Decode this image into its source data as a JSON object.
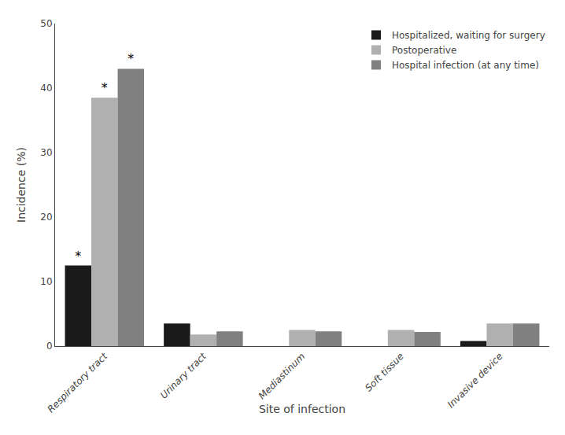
{
  "chart_data": {
    "type": "bar",
    "categories": [
      "Respiratory tract",
      "Urinary tract",
      "Mediastinum",
      "Soft tissue",
      "Invasive device"
    ],
    "series": [
      {
        "name": "Hospitalized, waiting for surgery",
        "color": "#1a1a1a",
        "values": [
          12.5,
          3.5,
          0.0,
          0.0,
          0.8
        ]
      },
      {
        "name": "Postoperative",
        "color": "#b0b0b0",
        "values": [
          38.5,
          1.8,
          2.5,
          2.5,
          3.5
        ]
      },
      {
        "name": "Hospital infection (at any time)",
        "color": "#808080",
        "values": [
          43.0,
          2.3,
          2.3,
          2.2,
          3.5
        ]
      }
    ],
    "annotations": [
      {
        "text": "*",
        "category": "Respiratory tract",
        "series": "Hospitalized, waiting for surgery"
      },
      {
        "text": "*",
        "category": "Respiratory tract",
        "series": "Postoperative"
      },
      {
        "text": "*",
        "category": "Respiratory tract",
        "series": "Hospital infection (at any time)"
      }
    ],
    "xlabel": "Site of infection",
    "ylabel": "Incidence (%)",
    "ylim": [
      0,
      50
    ],
    "yticks": [
      0,
      10,
      20,
      30,
      40,
      50
    ],
    "grid": false,
    "legend": "upper right"
  }
}
